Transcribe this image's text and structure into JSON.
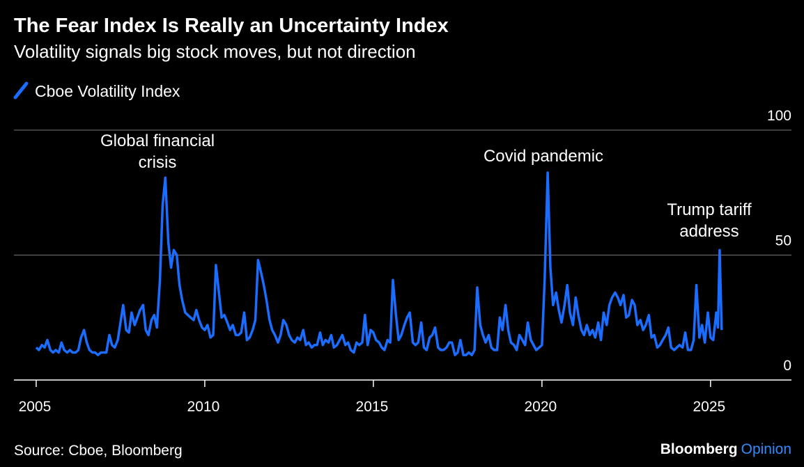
{
  "chart_data": {
    "type": "line",
    "title": "The Fear Index Is Really an Uncertainty Index",
    "subtitle": "Volatility signals big stock moves, but not direction",
    "source": "Source: Cboe, Bloomberg",
    "brand": {
      "name": "Bloomberg",
      "product": "Opinion"
    },
    "annotations": [
      {
        "lines": [
          "Global financial",
          "crisis"
        ]
      },
      {
        "lines": [
          "Covid pandemic"
        ]
      },
      {
        "lines": [
          "Trump tariff",
          "address"
        ]
      }
    ],
    "xlim": [
      2004.34,
      2027.4
    ],
    "xticks": [
      2005,
      2010,
      2015,
      2020,
      2025
    ],
    "ylim": [
      0,
      100
    ],
    "yticks": [
      0,
      50,
      100
    ],
    "grid": true,
    "x": [
      2005.0,
      2005.08,
      2005.17,
      2005.25,
      2005.33,
      2005.42,
      2005.5,
      2005.58,
      2005.67,
      2005.75,
      2005.83,
      2005.92,
      2006.0,
      2006.08,
      2006.17,
      2006.25,
      2006.33,
      2006.42,
      2006.5,
      2006.58,
      2006.67,
      2006.75,
      2006.83,
      2006.92,
      2007.0,
      2007.08,
      2007.17,
      2007.25,
      2007.33,
      2007.42,
      2007.5,
      2007.58,
      2007.67,
      2007.75,
      2007.83,
      2007.92,
      2008.0,
      2008.08,
      2008.17,
      2008.25,
      2008.33,
      2008.42,
      2008.5,
      2008.58,
      2008.67,
      2008.75,
      2008.83,
      2008.92,
      2009.0,
      2009.08,
      2009.17,
      2009.25,
      2009.33,
      2009.42,
      2009.5,
      2009.58,
      2009.67,
      2009.75,
      2009.83,
      2009.92,
      2010.0,
      2010.08,
      2010.17,
      2010.25,
      2010.33,
      2010.42,
      2010.5,
      2010.58,
      2010.67,
      2010.75,
      2010.83,
      2010.92,
      2011.0,
      2011.08,
      2011.17,
      2011.25,
      2011.33,
      2011.42,
      2011.5,
      2011.58,
      2011.67,
      2011.75,
      2011.83,
      2011.92,
      2012.0,
      2012.08,
      2012.17,
      2012.25,
      2012.33,
      2012.42,
      2012.5,
      2012.58,
      2012.67,
      2012.75,
      2012.83,
      2012.92,
      2013.0,
      2013.08,
      2013.17,
      2013.25,
      2013.33,
      2013.42,
      2013.5,
      2013.58,
      2013.67,
      2013.75,
      2013.83,
      2013.92,
      2014.0,
      2014.08,
      2014.17,
      2014.25,
      2014.33,
      2014.42,
      2014.5,
      2014.58,
      2014.67,
      2014.75,
      2014.83,
      2014.92,
      2015.0,
      2015.08,
      2015.17,
      2015.25,
      2015.33,
      2015.42,
      2015.5,
      2015.58,
      2015.67,
      2015.75,
      2015.83,
      2015.92,
      2016.0,
      2016.08,
      2016.17,
      2016.25,
      2016.33,
      2016.42,
      2016.5,
      2016.58,
      2016.67,
      2016.75,
      2016.83,
      2016.92,
      2017.0,
      2017.08,
      2017.17,
      2017.25,
      2017.33,
      2017.42,
      2017.5,
      2017.58,
      2017.67,
      2017.75,
      2017.83,
      2017.92,
      2018.0,
      2018.08,
      2018.17,
      2018.25,
      2018.33,
      2018.42,
      2018.5,
      2018.58,
      2018.67,
      2018.75,
      2018.83,
      2018.92,
      2019.0,
      2019.08,
      2019.17,
      2019.25,
      2019.33,
      2019.42,
      2019.5,
      2019.58,
      2019.67,
      2019.75,
      2019.83,
      2019.92,
      2020.0,
      2020.08,
      2020.17,
      2020.25,
      2020.33,
      2020.42,
      2020.5,
      2020.58,
      2020.67,
      2020.75,
      2020.83,
      2020.92,
      2021.0,
      2021.08,
      2021.17,
      2021.25,
      2021.33,
      2021.42,
      2021.5,
      2021.58,
      2021.67,
      2021.75,
      2021.83,
      2021.92,
      2022.0,
      2022.08,
      2022.17,
      2022.25,
      2022.33,
      2022.42,
      2022.5,
      2022.58,
      2022.67,
      2022.75,
      2022.83,
      2022.92,
      2023.0,
      2023.08,
      2023.17,
      2023.25,
      2023.33,
      2023.42,
      2023.5,
      2023.58,
      2023.67,
      2023.75,
      2023.83,
      2023.92,
      2024.0,
      2024.08,
      2024.17,
      2024.25,
      2024.33,
      2024.42,
      2024.5,
      2024.58,
      2024.67,
      2024.75,
      2024.83,
      2024.92,
      2025.0,
      2025.08,
      2025.17,
      2025.22,
      2025.27,
      2025.33
    ],
    "series": [
      {
        "name": "Cboe Volatility Index",
        "color": "#1a6dff",
        "values": [
          13,
          12,
          14,
          13,
          16,
          12,
          11,
          12,
          11,
          15,
          12,
          11,
          12,
          11,
          11,
          12,
          17,
          20,
          15,
          12,
          11,
          11,
          10,
          11,
          11,
          11,
          18,
          14,
          13,
          16,
          23,
          30,
          20,
          19,
          27,
          22,
          25,
          28,
          30,
          20,
          18,
          24,
          26,
          21,
          40,
          70,
          81,
          55,
          45,
          52,
          50,
          38,
          32,
          27,
          26,
          25,
          24,
          28,
          24,
          21,
          20,
          22,
          17,
          18,
          46,
          35,
          25,
          26,
          23,
          20,
          22,
          18,
          18,
          19,
          27,
          16,
          17,
          20,
          24,
          48,
          43,
          38,
          32,
          24,
          20,
          18,
          15,
          18,
          24,
          22,
          18,
          16,
          15,
          17,
          16,
          20,
          14,
          15,
          13,
          14,
          14,
          19,
          14,
          16,
          15,
          18,
          13,
          14,
          16,
          18,
          14,
          15,
          12,
          11,
          15,
          14,
          15,
          26,
          14,
          20,
          19,
          16,
          15,
          13,
          12,
          16,
          15,
          40,
          26,
          16,
          18,
          22,
          25,
          27,
          15,
          14,
          15,
          23,
          13,
          12,
          17,
          18,
          21,
          13,
          12,
          12,
          13,
          15,
          15,
          10,
          11,
          16,
          10,
          10,
          11,
          10,
          12,
          37,
          22,
          18,
          15,
          18,
          13,
          12,
          12,
          25,
          20,
          30,
          20,
          15,
          14,
          12,
          18,
          16,
          14,
          23,
          16,
          14,
          12,
          13,
          14,
          40,
          83,
          45,
          30,
          35,
          28,
          23,
          30,
          38,
          27,
          22,
          33,
          26,
          20,
          18,
          22,
          18,
          20,
          17,
          23,
          16,
          27,
          22,
          30,
          33,
          35,
          33,
          30,
          34,
          25,
          26,
          32,
          30,
          22,
          24,
          20,
          22,
          26,
          17,
          18,
          13,
          14,
          16,
          18,
          21,
          13,
          12,
          13,
          14,
          13,
          19,
          12,
          12,
          16,
          38,
          17,
          22,
          15,
          27,
          17,
          16,
          27,
          21,
          52,
          20
        ]
      }
    ]
  }
}
